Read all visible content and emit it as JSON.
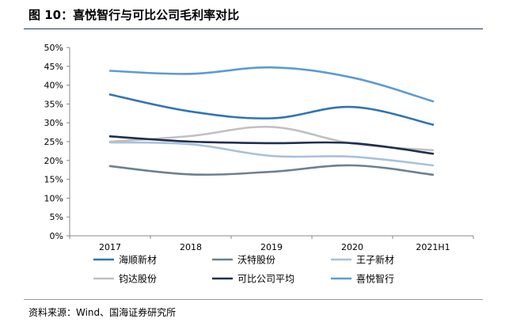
{
  "header": {
    "title": "图 10：喜悦智行与可比公司毛利率对比"
  },
  "footer": {
    "source": "资料来源：Wind、国海证券研究所"
  },
  "chart_data": {
    "type": "line",
    "categories": [
      "2017",
      "2018",
      "2019",
      "2020",
      "2021H1"
    ],
    "y_ticks": [
      "50%",
      "45%",
      "40%",
      "35%",
      "30%",
      "25%",
      "20%",
      "15%",
      "10%",
      "5%",
      "0%"
    ],
    "ylim": [
      0,
      50
    ],
    "y_unit": "%",
    "grid": false,
    "legend_position": "bottom",
    "series": [
      {
        "name": "海顺新材",
        "color": "#2e75b6",
        "values": [
          37.5,
          33.0,
          31.2,
          34.2,
          29.5
        ]
      },
      {
        "name": "沃特股份",
        "color": "#6d8092",
        "values": [
          18.5,
          16.3,
          17.0,
          18.7,
          16.2
        ]
      },
      {
        "name": "王子新材",
        "color": "#a6c2dc",
        "values": [
          24.8,
          24.3,
          21.2,
          21.0,
          18.7
        ]
      },
      {
        "name": "钧达股份",
        "color": "#c0c0c0",
        "values": [
          25.0,
          26.5,
          28.9,
          24.5,
          22.7
        ]
      },
      {
        "name": "可比公司平均",
        "color": "#1f2f4f",
        "values": [
          26.4,
          25.0,
          24.6,
          24.6,
          21.8
        ]
      },
      {
        "name": "喜悦智行",
        "color": "#5b9bd5",
        "values": [
          43.8,
          43.0,
          44.7,
          42.0,
          35.7
        ]
      }
    ]
  }
}
